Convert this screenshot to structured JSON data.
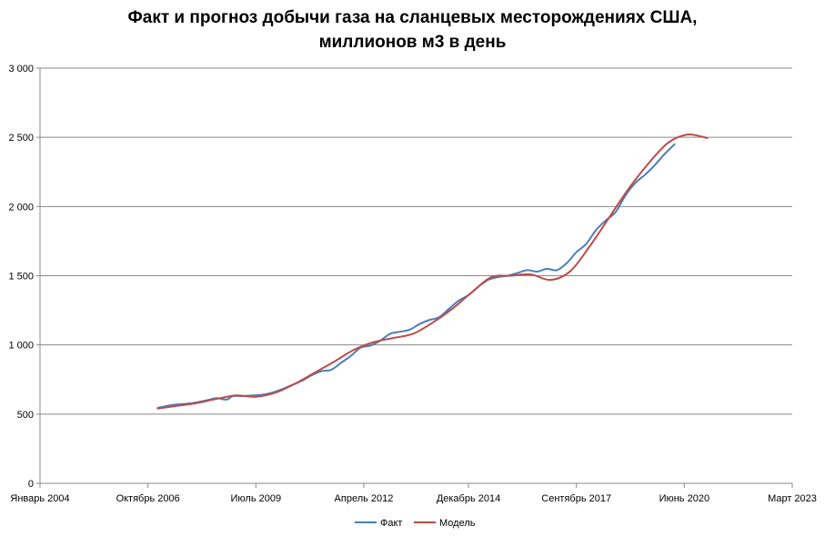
{
  "chart_data": {
    "type": "line",
    "title_lines": [
      "Факт и прогноз добычи газа на сланцевых месторождениях США,",
      "миллионов м3 в день"
    ],
    "xlabel": "",
    "ylabel": "",
    "xlim": [
      "2004-01",
      "2023-03"
    ],
    "ylim": [
      0,
      3000
    ],
    "grid": true,
    "legend_position": "bottom",
    "x_ticks": [
      {
        "date": "2004-01",
        "label": "Январь 2004"
      },
      {
        "date": "2006-10",
        "label": "Октябрь 2006"
      },
      {
        "date": "2009-07",
        "label": "Июль 2009"
      },
      {
        "date": "2012-04",
        "label": "Апрель 2012"
      },
      {
        "date": "2014-12",
        "label": "Декабрь 2014"
      },
      {
        "date": "2017-09",
        "label": "Сентябрь 2017"
      },
      {
        "date": "2020-06",
        "label": "Июнь 2020"
      },
      {
        "date": "2023-03",
        "label": "Март 2023"
      }
    ],
    "y_ticks": [
      {
        "value": 0,
        "label": "0"
      },
      {
        "value": 500,
        "label": "500"
      },
      {
        "value": 1000,
        "label": "1 000"
      },
      {
        "value": 1500,
        "label": "1 500"
      },
      {
        "value": 2000,
        "label": "2 000"
      },
      {
        "value": 2500,
        "label": "2 500"
      },
      {
        "value": 3000,
        "label": "3 000"
      }
    ],
    "series": [
      {
        "name": "Факт",
        "color": "#4a7ebb",
        "points": [
          [
            "2007-01",
            545
          ],
          [
            "2007-04",
            560
          ],
          [
            "2007-07",
            570
          ],
          [
            "2007-10",
            575
          ],
          [
            "2008-01",
            585
          ],
          [
            "2008-04",
            600
          ],
          [
            "2008-07",
            615
          ],
          [
            "2008-10",
            605
          ],
          [
            "2008-12",
            630
          ],
          [
            "2009-03",
            630
          ],
          [
            "2009-06",
            635
          ],
          [
            "2009-09",
            640
          ],
          [
            "2009-12",
            655
          ],
          [
            "2010-03",
            680
          ],
          [
            "2010-06",
            710
          ],
          [
            "2010-09",
            740
          ],
          [
            "2010-12",
            780
          ],
          [
            "2011-03",
            810
          ],
          [
            "2011-06",
            820
          ],
          [
            "2011-09",
            870
          ],
          [
            "2011-12",
            920
          ],
          [
            "2012-03",
            980
          ],
          [
            "2012-06",
            995
          ],
          [
            "2012-09",
            1030
          ],
          [
            "2012-12",
            1080
          ],
          [
            "2013-03",
            1095
          ],
          [
            "2013-06",
            1110
          ],
          [
            "2013-09",
            1150
          ],
          [
            "2013-12",
            1180
          ],
          [
            "2014-03",
            1200
          ],
          [
            "2014-06",
            1260
          ],
          [
            "2014-09",
            1320
          ],
          [
            "2014-12",
            1360
          ],
          [
            "2015-03",
            1420
          ],
          [
            "2015-06",
            1470
          ],
          [
            "2015-09",
            1490
          ],
          [
            "2015-12",
            1500
          ],
          [
            "2016-03",
            1520
          ],
          [
            "2016-06",
            1540
          ],
          [
            "2016-09",
            1530
          ],
          [
            "2016-12",
            1550
          ],
          [
            "2017-03",
            1540
          ],
          [
            "2017-06",
            1590
          ],
          [
            "2017-09",
            1670
          ],
          [
            "2017-12",
            1730
          ],
          [
            "2018-03",
            1830
          ],
          [
            "2018-06",
            1900
          ],
          [
            "2018-09",
            1960
          ],
          [
            "2018-12",
            2080
          ],
          [
            "2019-03",
            2170
          ],
          [
            "2019-06",
            2230
          ],
          [
            "2019-09",
            2300
          ],
          [
            "2019-12",
            2380
          ],
          [
            "2020-03",
            2450
          ]
        ]
      },
      {
        "name": "Модель",
        "color": "#be4b48",
        "points": [
          [
            "2007-01",
            540
          ],
          [
            "2007-07",
            560
          ],
          [
            "2008-01",
            580
          ],
          [
            "2008-07",
            610
          ],
          [
            "2009-01",
            635
          ],
          [
            "2009-07",
            625
          ],
          [
            "2010-01",
            655
          ],
          [
            "2010-07",
            720
          ],
          [
            "2011-01",
            800
          ],
          [
            "2011-07",
            880
          ],
          [
            "2012-01",
            965
          ],
          [
            "2012-07",
            1020
          ],
          [
            "2013-01",
            1050
          ],
          [
            "2013-07",
            1080
          ],
          [
            "2014-01",
            1160
          ],
          [
            "2014-07",
            1260
          ],
          [
            "2015-01",
            1380
          ],
          [
            "2015-07",
            1490
          ],
          [
            "2016-01",
            1500
          ],
          [
            "2016-07",
            1510
          ],
          [
            "2017-01",
            1470
          ],
          [
            "2017-07",
            1530
          ],
          [
            "2018-01",
            1710
          ],
          [
            "2018-07",
            1920
          ],
          [
            "2019-01",
            2130
          ],
          [
            "2019-07",
            2310
          ],
          [
            "2020-01",
            2460
          ],
          [
            "2020-07",
            2520
          ],
          [
            "2021-01",
            2495
          ]
        ]
      }
    ]
  }
}
